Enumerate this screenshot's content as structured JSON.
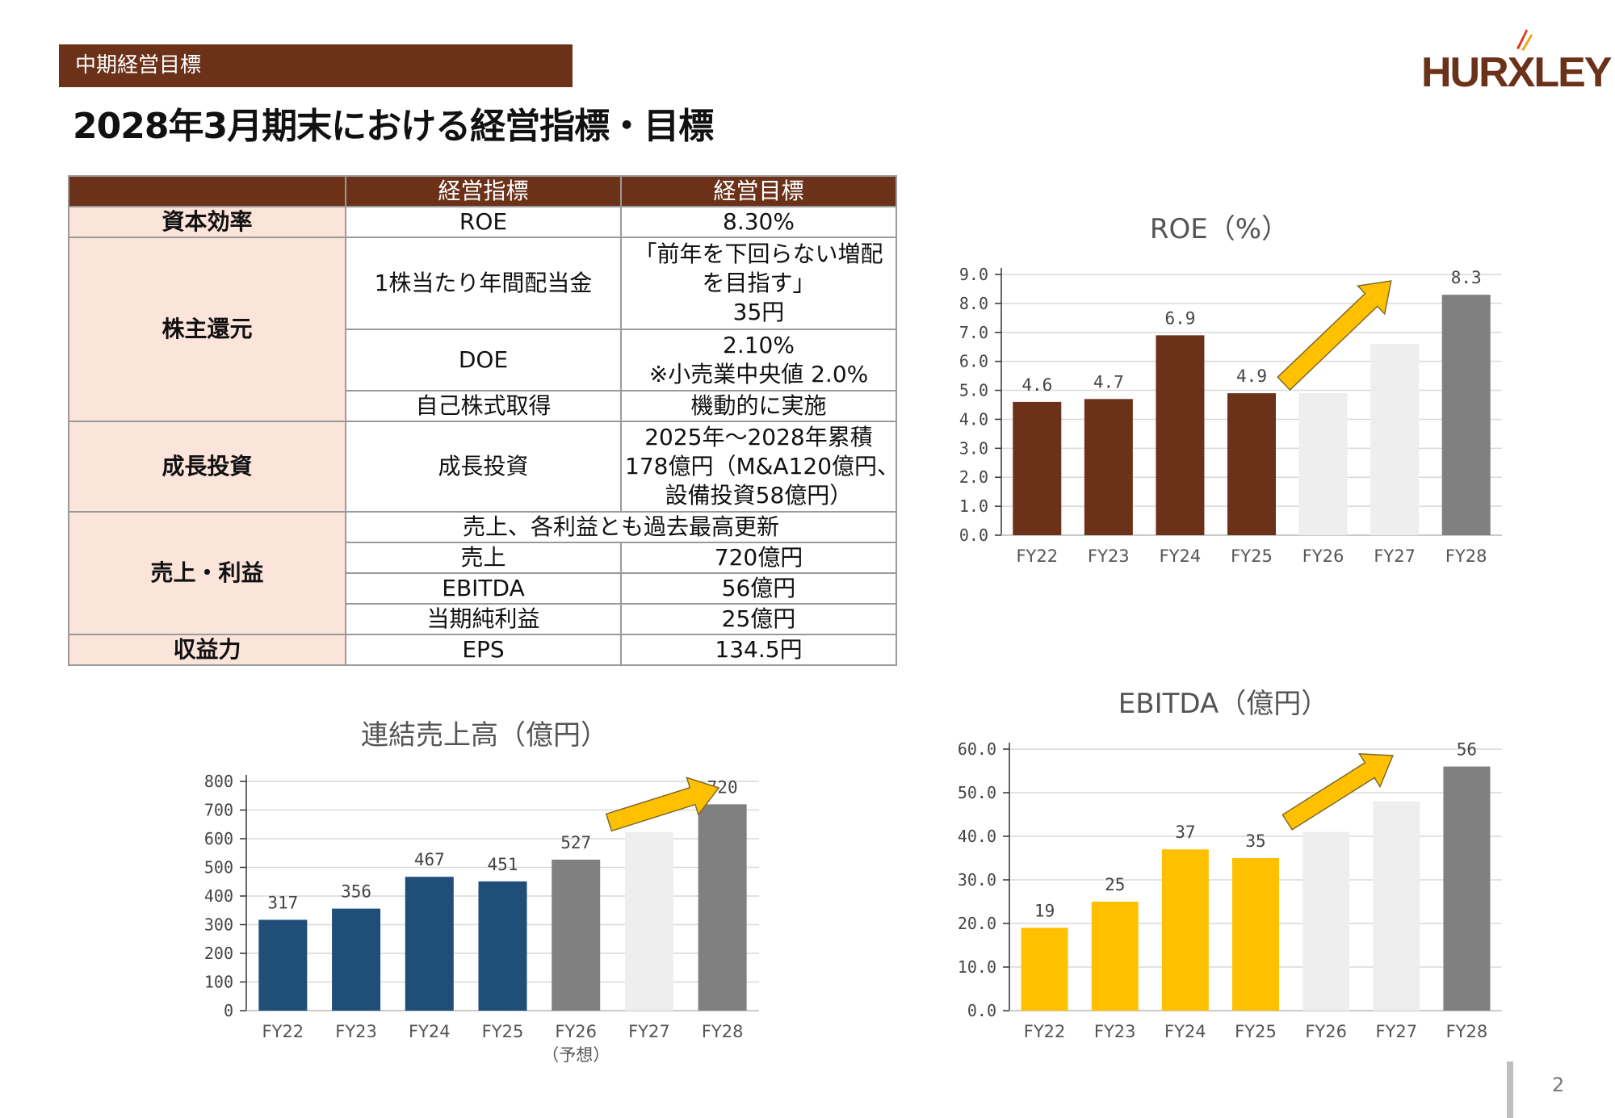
{
  "header": {
    "section_tag": "中期経営目標",
    "title": "2028年3月期末における経営指標・目標",
    "logo_text": "HURXLEY",
    "page_number": "2"
  },
  "colors": {
    "brand_brown": "#6b3219",
    "category_fill": "#fbe4da",
    "roe_actual": "#6b3219",
    "sales_actual": "#1f4e79",
    "ebitda_actual": "#ffc000",
    "forecast_gray": "#808080",
    "ghost_bar": "#eeeeee",
    "arrow": "#ffc000"
  },
  "table": {
    "headers": [
      "",
      "経営指標",
      "経営目標"
    ],
    "categories": {
      "capital": "資本効率",
      "shareholder": "株主還元",
      "growth": "成長投資",
      "sales_profit": "売上・利益",
      "earnings": "収益力"
    },
    "rows": {
      "roe_metric": "ROE",
      "roe_target": "8.30%",
      "dividend_metric": "1株当たり年間配当金",
      "dividend_target_1": "「前年を下回らない増配",
      "dividend_target_2": "を目指す」",
      "dividend_target_3": "35円",
      "doe_metric": "DOE",
      "doe_target_1": "2.10%",
      "doe_target_2": "※小売業中央値 2.0%",
      "buyback_metric": "自己株式取得",
      "buyback_target": "機動的に実施",
      "growth_metric": "成長投資",
      "growth_target_1": "2025年～2028年累積",
      "growth_target_2": "178億円（M&A120億円、",
      "growth_target_3": "設備投資58億円）",
      "record_note": "売上、各利益とも過去最高更新",
      "sales_metric": "売上",
      "sales_target": "720億円",
      "ebitda_metric": "EBITDA",
      "ebitda_target": "56億円",
      "netincome_metric": "当期純利益",
      "netincome_target": "25億円",
      "eps_metric": "EPS",
      "eps_target": "134.5円"
    }
  },
  "chart_data": [
    {
      "id": "roe",
      "type": "bar",
      "title": "ROE（%）",
      "categories": [
        "FY22",
        "FY23",
        "FY24",
        "FY25",
        "FY26",
        "FY27",
        "FY28"
      ],
      "values": [
        4.6,
        4.7,
        6.9,
        4.9,
        4.9,
        6.6,
        8.3
      ],
      "labels": [
        "4.6",
        "4.7",
        "6.9",
        "4.9",
        "",
        "",
        "8.3"
      ],
      "bar_colors": [
        "#6b3219",
        "#6b3219",
        "#6b3219",
        "#6b3219",
        "#eeeeee",
        "#eeeeee",
        "#808080"
      ],
      "ylim": [
        0,
        9
      ],
      "yticks": [
        "0.0",
        "1.0",
        "2.0",
        "3.0",
        "4.0",
        "5.0",
        "6.0",
        "7.0",
        "8.0",
        "9.0"
      ],
      "ytick_step": 1,
      "grid": true,
      "arrow": {
        "from_index": 4,
        "to_index": 5
      }
    },
    {
      "id": "sales",
      "type": "bar",
      "title": "連結売上高（億円）",
      "categories": [
        "FY22",
        "FY23",
        "FY24",
        "FY25",
        "FY26",
        "FY27",
        "FY28"
      ],
      "sub_categories": [
        "",
        "",
        "",
        "",
        "（予想）",
        "",
        ""
      ],
      "values": [
        317,
        356,
        467,
        451,
        527,
        623,
        720
      ],
      "labels": [
        "317",
        "356",
        "467",
        "451",
        "527",
        "",
        "720"
      ],
      "bar_colors": [
        "#1f4e79",
        "#1f4e79",
        "#1f4e79",
        "#1f4e79",
        "#808080",
        "#eeeeee",
        "#808080"
      ],
      "ylim": [
        0,
        800
      ],
      "yticks": [
        "0",
        "100",
        "200",
        "300",
        "400",
        "500",
        "600",
        "700",
        "800"
      ],
      "ytick_step": 100,
      "grid": true,
      "arrow": {
        "from_index": 5,
        "to_index": 6
      }
    },
    {
      "id": "ebitda",
      "type": "bar",
      "title": "EBITDA（億円）",
      "categories": [
        "FY22",
        "FY23",
        "FY24",
        "FY25",
        "FY26",
        "FY27",
        "FY28"
      ],
      "values": [
        19,
        25,
        37,
        35,
        41,
        48,
        56
      ],
      "labels": [
        "19",
        "25",
        "37",
        "35",
        "",
        "",
        "56"
      ],
      "bar_colors": [
        "#ffc000",
        "#ffc000",
        "#ffc000",
        "#ffc000",
        "#eeeeee",
        "#eeeeee",
        "#808080"
      ],
      "ylim": [
        0,
        60
      ],
      "yticks": [
        "0.0",
        "10.0",
        "20.0",
        "30.0",
        "40.0",
        "50.0",
        "60.0"
      ],
      "ytick_step": 10,
      "grid": true,
      "arrow": {
        "from_index": 4,
        "to_index": 5
      }
    }
  ]
}
